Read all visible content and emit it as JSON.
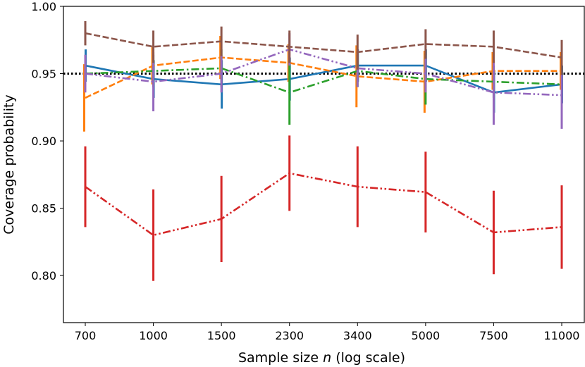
{
  "chart_data": {
    "type": "line",
    "title": "",
    "xlabel": "Sample size n (log scale)",
    "xlabel_parts": {
      "before": "Sample size ",
      "italic": "n",
      "after": " (log scale)"
    },
    "ylabel": "Coverage probability",
    "categories": [
      "700",
      "1000",
      "1500",
      "2300",
      "3400",
      "5000",
      "7500",
      "11000"
    ],
    "x": [
      700,
      1000,
      1500,
      2300,
      3400,
      5000,
      7500,
      11000
    ],
    "ylim": [
      0.765,
      1.0
    ],
    "yticks": [
      0.8,
      0.85,
      0.9,
      0.95,
      1.0
    ],
    "ytick_labels": [
      "0.80",
      "0.85",
      "0.90",
      "0.95",
      "1.00"
    ],
    "reference_line": {
      "y": 0.95,
      "style": "dotted",
      "color": "#000000"
    },
    "grid": false,
    "series": [
      {
        "name": "series-blue",
        "color": "#1f77b4",
        "dash": "solid",
        "offset": 0.5,
        "values": [
          0.956,
          0.946,
          0.942,
          0.946,
          0.956,
          0.956,
          0.936,
          0.942
        ],
        "errors": [
          0.012,
          0.014,
          0.018,
          0.016,
          0.012,
          0.012,
          0.015,
          0.014
        ]
      },
      {
        "name": "series-orange",
        "color": "#ff7f0e",
        "dash": "dashed",
        "offset": -1.5,
        "values": [
          0.932,
          0.956,
          0.962,
          0.958,
          0.948,
          0.944,
          0.952,
          0.952
        ],
        "errors": [
          0.025,
          0.014,
          0.016,
          0.014,
          0.023,
          0.023,
          0.014,
          0.014
        ]
      },
      {
        "name": "series-green",
        "color": "#2ca02c",
        "dash": "dashdot",
        "offset": 0,
        "values": [
          0.95,
          0.952,
          0.954,
          0.936,
          0.952,
          0.946,
          0.944,
          0.942
        ],
        "errors": [
          0.01,
          0.012,
          0.014,
          0.024,
          0.012,
          0.019,
          0.012,
          0.012
        ]
      },
      {
        "name": "series-red",
        "color": "#d62728",
        "dash": "dashdotdot",
        "offset": 0,
        "values": [
          0.866,
          0.83,
          0.842,
          0.876,
          0.866,
          0.862,
          0.832,
          0.836
        ],
        "errors": [
          0.03,
          0.034,
          0.032,
          0.028,
          0.03,
          0.03,
          0.031,
          0.031
        ]
      },
      {
        "name": "series-purple",
        "color": "#9467bd",
        "dash": "dashdotdot",
        "offset": 0,
        "values": [
          0.95,
          0.944,
          0.95,
          0.968,
          0.954,
          0.95,
          0.936,
          0.934
        ],
        "errors": [
          0.014,
          0.022,
          0.014,
          0.012,
          0.014,
          0.014,
          0.024,
          0.025
        ]
      },
      {
        "name": "series-brown",
        "color": "#8c564b",
        "dash": "dashed",
        "offset": 0,
        "values": [
          0.98,
          0.97,
          0.974,
          0.97,
          0.966,
          0.972,
          0.97,
          0.962
        ],
        "errors": [
          0.009,
          0.012,
          0.011,
          0.012,
          0.013,
          0.011,
          0.012,
          0.013
        ]
      }
    ]
  }
}
